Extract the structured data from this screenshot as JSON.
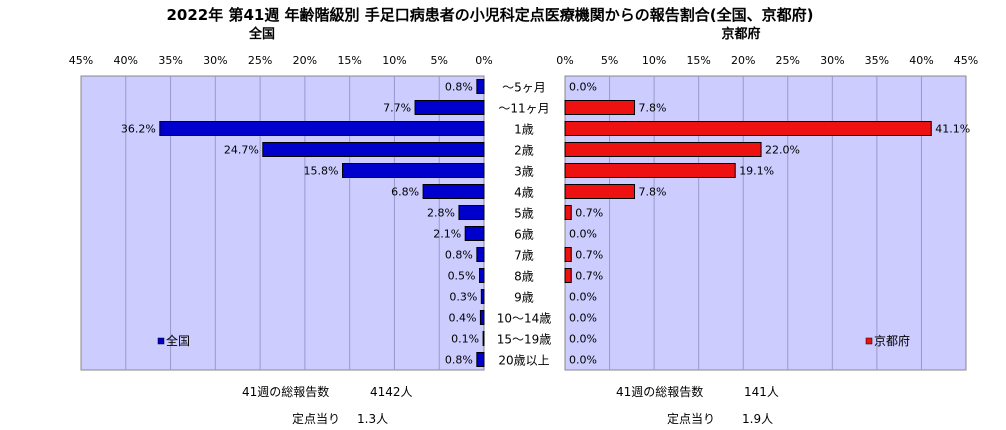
{
  "title": "2022年 第41週  年齢階級別 手足口病患者の小児科定点医療機関からの報告割合(全国、京都府)",
  "chart_data": [
    {
      "type": "bar",
      "orientation": "horizontal",
      "direction": "right-to-left",
      "subtitle": "全国",
      "categories": [
        "～5ヶ月",
        "～11ヶ月",
        "1歳",
        "2歳",
        "3歳",
        "4歳",
        "5歳",
        "6歳",
        "7歳",
        "8歳",
        "9歳",
        "10～14歳",
        "15～19歳",
        "20歳以上"
      ],
      "series": [
        {
          "name": "全国",
          "values": [
            0.8,
            7.7,
            36.2,
            24.7,
            15.8,
            6.8,
            2.8,
            2.1,
            0.8,
            0.5,
            0.3,
            0.4,
            0.1,
            0.8
          ],
          "color": "#0000cc"
        }
      ],
      "data_labels": [
        "0.8%",
        "7.7%",
        "36.2%",
        "24.7%",
        "15.8%",
        "6.8%",
        "2.8%",
        "2.1%",
        "0.8%",
        "0.5%",
        "0.3%",
        "0.4%",
        "0.1%",
        "0.8%"
      ],
      "xlim": [
        0,
        45
      ],
      "tick_labels": [
        "45%",
        "40%",
        "35%",
        "30%",
        "25%",
        "20%",
        "15%",
        "10%",
        "5%",
        "0%"
      ],
      "legend_position": "bottom-left",
      "grid": true,
      "plot_background": "#ccccff"
    },
    {
      "type": "bar",
      "orientation": "horizontal",
      "direction": "left-to-right",
      "subtitle": "京都府",
      "categories": [
        "～5ヶ月",
        "～11ヶ月",
        "1歳",
        "2歳",
        "3歳",
        "4歳",
        "5歳",
        "6歳",
        "7歳",
        "8歳",
        "9歳",
        "10～14歳",
        "15～19歳",
        "20歳以上"
      ],
      "series": [
        {
          "name": "京都府",
          "values": [
            0.0,
            7.8,
            41.1,
            22.0,
            19.1,
            7.8,
            0.7,
            0.0,
            0.7,
            0.7,
            0.0,
            0.0,
            0.0,
            0.0
          ],
          "color": "#ee1111"
        }
      ],
      "data_labels": [
        "0.0%",
        "7.8%",
        "41.1%",
        "22.0%",
        "19.1%",
        "7.8%",
        "0.7%",
        "0.0%",
        "0.7%",
        "0.7%",
        "0.0%",
        "0.0%",
        "0.0%",
        "0.0%"
      ],
      "xlim": [
        0,
        45
      ],
      "tick_labels": [
        "0%",
        "5%",
        "10%",
        "15%",
        "20%",
        "25%",
        "30%",
        "35%",
        "40%",
        "45%"
      ],
      "legend_position": "bottom-right",
      "grid": true,
      "plot_background": "#ccccff"
    }
  ],
  "footer": {
    "national_total_label": "41週の総報告数",
    "national_total_value": "4142人",
    "national_per_site_label": "定点当り",
    "national_per_site_value": "1.3人",
    "kyoto_total_label": "41週の総報告数",
    "kyoto_total_value": "141人",
    "kyoto_per_site_label": "定点当り",
    "kyoto_per_site_value": "1.9人"
  }
}
